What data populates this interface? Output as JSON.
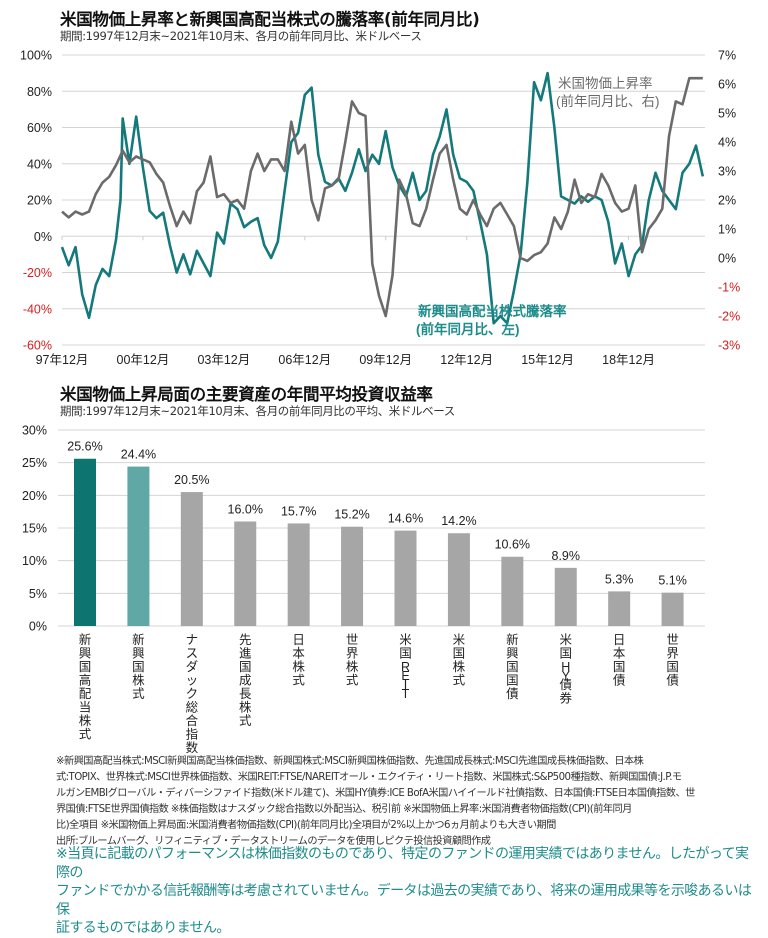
{
  "chart_data": [
    {
      "type": "line",
      "title": "米国物価上昇率と新興国高配当株式の騰落率(前年同月比)",
      "subtitle": "期間:1997年12月末~2021年10月末、各月の前年同月比、米ドルベース",
      "x_tick_labels": [
        "97年12月",
        "00年12月",
        "03年12月",
        "06年12月",
        "09年12月",
        "12年12月",
        "15年12月",
        "18年12月"
      ],
      "x_range": [
        "1997-12",
        "2021-10"
      ],
      "y_left": {
        "ticks": [
          "100%",
          "80%",
          "60%",
          "40%",
          "20%",
          "0%",
          "-20%",
          "-40%",
          "-60%"
        ],
        "range": [
          -60,
          100
        ],
        "unit": "%"
      },
      "y_right": {
        "ticks": [
          "7%",
          "6%",
          "5%",
          "4%",
          "3%",
          "2%",
          "1%",
          "0%",
          "-1%",
          "-2%",
          "-3%"
        ],
        "range": [
          -3,
          7
        ],
        "unit": "%"
      },
      "grid": true,
      "negative_tick_color": "#d42020",
      "series": [
        {
          "name": "新興国高配当株式騰落率",
          "label_line1": "新興国高配当株式騰落率",
          "label_line2": "(前年同月比、左)",
          "axis": "left",
          "color": "#14797a",
          "x_month_index": [
            0,
            3,
            6,
            9,
            12,
            15,
            18,
            21,
            24,
            26,
            27,
            30,
            33,
            36,
            39,
            42,
            45,
            48,
            51,
            54,
            57,
            60,
            63,
            66,
            69,
            72,
            75,
            78,
            81,
            84,
            87,
            90,
            93,
            96,
            99,
            102,
            105,
            108,
            111,
            114,
            117,
            120,
            123,
            126,
            129,
            132,
            135,
            138,
            141,
            144,
            147,
            150,
            153,
            156,
            159,
            162,
            165,
            168,
            171,
            174,
            177,
            180,
            183,
            186,
            189,
            192,
            195,
            198,
            201,
            204,
            207,
            210,
            213,
            216,
            219,
            222,
            225,
            228,
            231,
            234,
            237,
            240,
            243,
            246,
            249,
            252,
            255,
            258,
            261,
            264,
            267,
            270,
            273,
            276,
            279,
            282,
            285
          ],
          "values": [
            -6,
            -16,
            -6,
            -32,
            -45,
            -27,
            -18,
            -22,
            -2,
            20,
            65,
            40,
            66,
            38,
            14,
            10,
            13,
            -5,
            -20,
            -10,
            -21,
            -8,
            -15,
            -22,
            2,
            -4,
            18,
            15,
            5,
            8,
            10,
            -5,
            -12,
            -3,
            25,
            52,
            57,
            78,
            82,
            45,
            30,
            28,
            32,
            25,
            35,
            48,
            36,
            45,
            40,
            58,
            38,
            28,
            22,
            35,
            20,
            25,
            45,
            55,
            70,
            45,
            32,
            30,
            25,
            8,
            -10,
            -48,
            -44,
            -48,
            -30,
            -10,
            30,
            85,
            75,
            90,
            60,
            22,
            20,
            18,
            22,
            19,
            22,
            20,
            8,
            -15,
            -4,
            -22,
            -10,
            -5,
            20,
            35,
            25,
            20,
            15,
            35,
            40,
            50,
            33
          ]
        },
        {
          "name": "米国物価上昇率",
          "label_line1": "米国物価上昇率",
          "label_line2": "(前年同月比、右)",
          "axis": "right",
          "color": "#6b6b6b",
          "x_month_index": [
            0,
            3,
            6,
            9,
            12,
            15,
            18,
            21,
            24,
            27,
            30,
            33,
            36,
            39,
            42,
            45,
            48,
            51,
            54,
            57,
            60,
            63,
            66,
            69,
            72,
            75,
            78,
            81,
            84,
            87,
            90,
            93,
            96,
            99,
            102,
            105,
            108,
            111,
            114,
            117,
            120,
            123,
            126,
            129,
            132,
            135,
            138,
            141,
            144,
            147,
            150,
            153,
            156,
            159,
            162,
            165,
            168,
            171,
            174,
            177,
            180,
            183,
            186,
            189,
            192,
            195,
            198,
            201,
            204,
            207,
            210,
            213,
            216,
            219,
            222,
            225,
            228,
            231,
            234,
            237,
            240,
            243,
            246,
            249,
            252,
            255,
            258,
            261,
            264,
            267,
            270,
            273,
            276,
            279,
            282,
            285
          ],
          "values": [
            1.6,
            1.4,
            1.6,
            1.5,
            1.6,
            2.2,
            2.6,
            2.8,
            3.2,
            3.7,
            3.3,
            3.5,
            3.4,
            3.3,
            2.9,
            2.6,
            1.8,
            1.1,
            1.6,
            1.2,
            2.3,
            2.6,
            3.5,
            2.1,
            2.2,
            1.9,
            2.0,
            1.7,
            3.0,
            3.6,
            3.0,
            3.4,
            3.4,
            3.0,
            4.7,
            3.6,
            3.9,
            2.0,
            1.3,
            2.4,
            2.5,
            2.7,
            4.0,
            5.4,
            5.0,
            4.9,
            -0.2,
            -1.3,
            -2.0,
            -0.6,
            2.7,
            2.2,
            1.2,
            1.1,
            1.7,
            2.7,
            3.6,
            3.9,
            2.7,
            1.7,
            1.5,
            2.0,
            1.5,
            1.1,
            1.7,
            1.9,
            1.5,
            1.1,
            0.0,
            -0.1,
            0.1,
            0.2,
            0.5,
            1.4,
            1.0,
            1.6,
            2.7,
            1.9,
            2.2,
            2.1,
            2.9,
            2.5,
            1.9,
            1.6,
            1.7,
            2.5,
            0.2,
            1.0,
            1.3,
            1.7,
            4.2,
            5.4,
            5.3,
            6.2,
            6.2,
            6.2
          ]
        }
      ]
    },
    {
      "type": "bar",
      "title": "米国物価上昇局面の主要資産の年間平均投資収益率",
      "subtitle": "期間:1997年12月末~2021年10月末、各月の前年同月比の平均、米ドルベース",
      "categories": [
        "新興国高配当株式",
        "新興国株式",
        "ナスダック総合指数",
        "先進国成長株式",
        "日本株式",
        "世界株式",
        "米国REIT",
        "米国株式",
        "新興国国債",
        "米国HY債券",
        "日本国債",
        "世界国債"
      ],
      "values": [
        25.6,
        24.4,
        20.5,
        16.0,
        15.7,
        15.2,
        14.6,
        14.2,
        10.6,
        8.9,
        5.3,
        5.1
      ],
      "data_labels": [
        "25.6%",
        "24.4%",
        "20.5%",
        "16.0%",
        "15.7%",
        "15.2%",
        "14.6%",
        "14.2%",
        "10.6%",
        "8.9%",
        "5.3%",
        "5.1%"
      ],
      "bar_colors": [
        "#0e7470",
        "#5fa8a6",
        "#a6a6a6",
        "#a6a6a6",
        "#a6a6a6",
        "#a6a6a6",
        "#a6a6a6",
        "#a6a6a6",
        "#a6a6a6",
        "#a6a6a6",
        "#a6a6a6",
        "#a6a6a6"
      ],
      "y_ticks": [
        "30%",
        "25%",
        "20%",
        "15%",
        "10%",
        "5%",
        "0%"
      ],
      "ylim": [
        0,
        30
      ],
      "xlabel": "",
      "ylabel": "",
      "grid": true
    }
  ],
  "footnotes": [
    "※新興国高配当株式:MSCI新興国高配当株価指数、新興国株式:MSCI新興国株価指数、先進国成長株式:MSCI先進国成長株価指数、日本株",
    "式:TOPIX、世界株式:MSCI世界株価指数、米国REIT:FTSE/NAREITオール・エクイティ・リート指数、米国株式:S&P500種指数、新興国国債:J.P.モ",
    "ルガンEMBIグローバル・ディバーシファイド指数(米ドル建て)、米国HY債券:ICE BofA米国ハイイールド社債指数、日本国債:FTSE日本国債指数、世",
    "界国債:FTSE世界国債指数 ※株価指数はナスダック総合指数以外配当込、税引前 ※米国物価上昇率:米国消費者物価指数(CPI)(前年同月",
    "比)全項目 ※米国物価上昇局面:米国消費者物価指数(CPI)(前年同月比)全項目が2%以上かつ6ヵ月前よりも大きい期間",
    "出所:ブルームバーグ、リフィニティブ・データストリームのデータを使用しピクテ投信投資顧問作成"
  ],
  "disclaimer": [
    "※当頁に記載のパフォーマンスは株価指数のものであり、特定のファンドの運用実績ではありません。したがって実際の",
    "ファンドでかかる信託報酬等は考慮されていません。データは過去の実績であり、将来の運用成果等を示唆あるいは保",
    "証するものではありません。"
  ]
}
